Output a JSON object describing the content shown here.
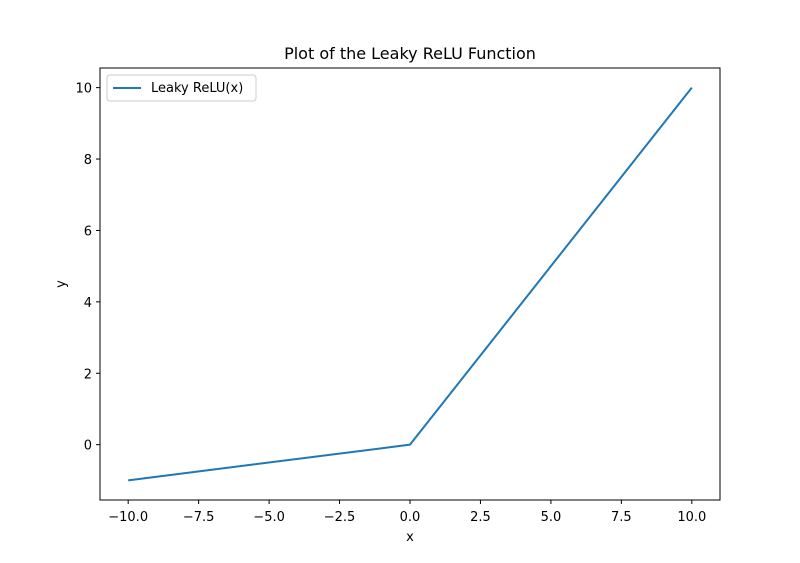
{
  "chart_data": {
    "type": "line",
    "title": "Plot of the Leaky ReLU Function",
    "xlabel": "x",
    "ylabel": "y",
    "xlim": [
      -11,
      11
    ],
    "ylim": [
      -1.55,
      10.55
    ],
    "x_ticks": [
      -10,
      -7.5,
      -5,
      -2.5,
      0,
      2.5,
      5,
      7.5,
      10
    ],
    "x_tick_labels": [
      "−10.0",
      "−7.5",
      "−5.0",
      "−2.5",
      "0.0",
      "2.5",
      "5.0",
      "7.5",
      "10.0"
    ],
    "y_ticks": [
      0,
      2,
      4,
      6,
      8,
      10
    ],
    "y_tick_labels": [
      "0",
      "2",
      "4",
      "6",
      "8",
      "10"
    ],
    "grid": false,
    "legend": {
      "placement": "top-left"
    },
    "series": [
      {
        "name": "Leaky ReLU(x)",
        "color": "#1f77b4",
        "x": [
          -10,
          0,
          10
        ],
        "y": [
          -1,
          0,
          10
        ]
      }
    ]
  }
}
